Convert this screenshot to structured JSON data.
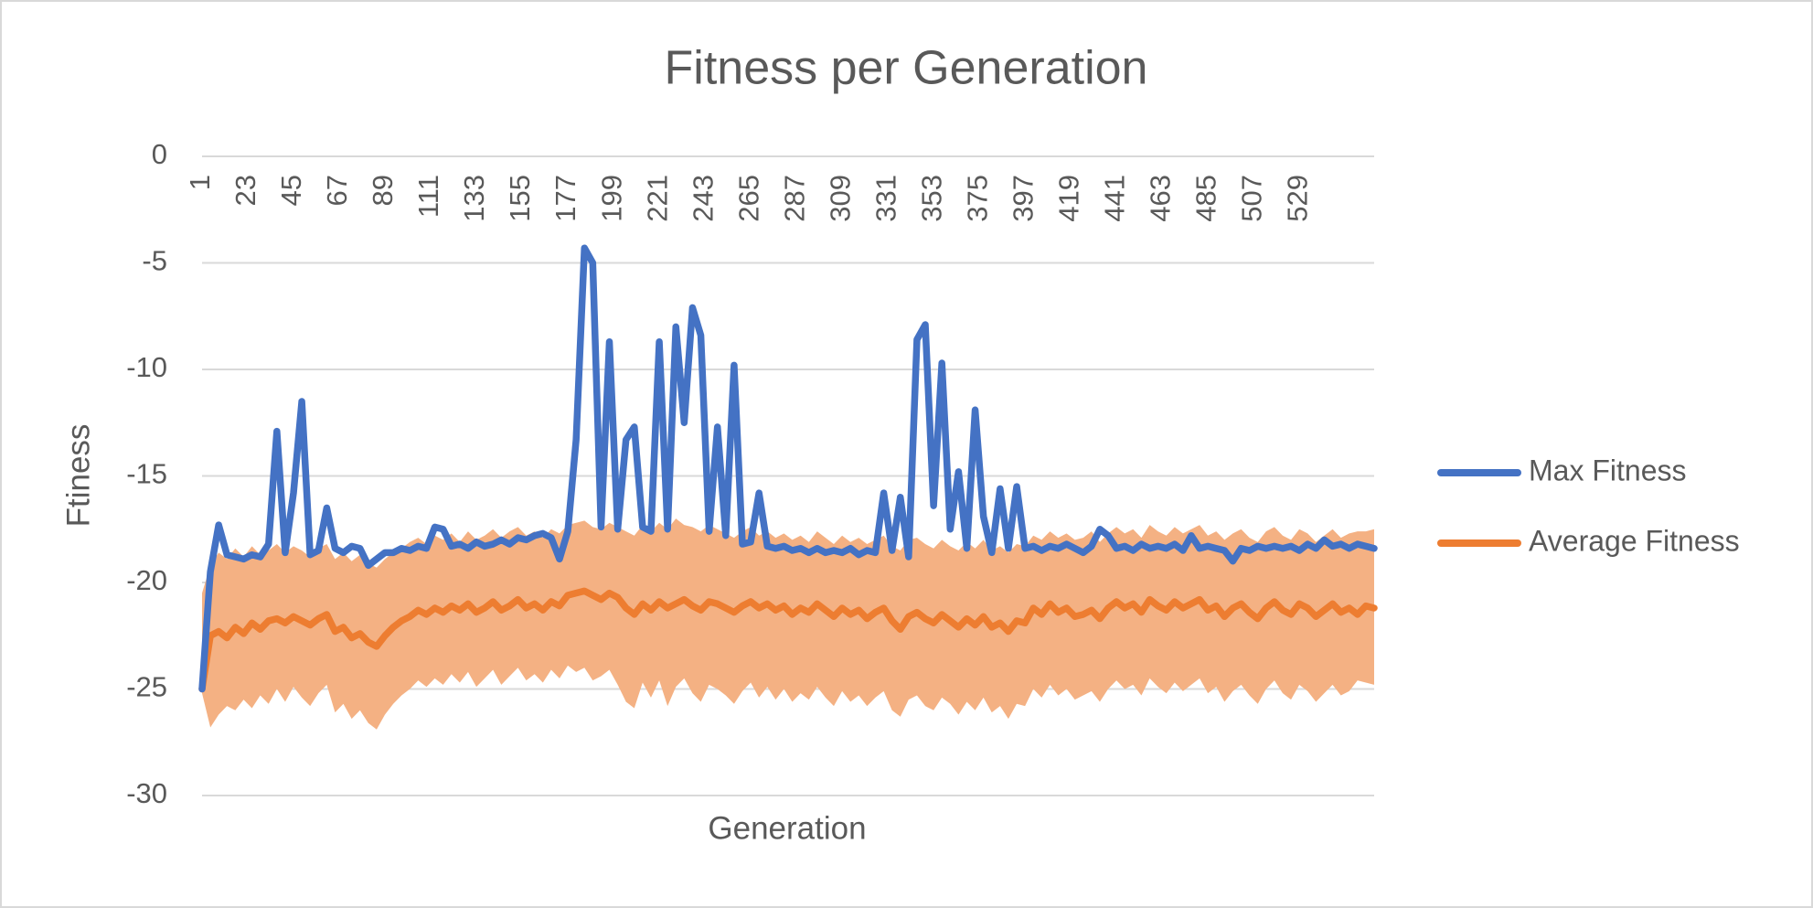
{
  "chart_data": {
    "type": "line",
    "title": "Fitness per Generation",
    "x_label": "Generation",
    "y_label": "Ftiness",
    "x": [
      1,
      5,
      9,
      13,
      17,
      21,
      25,
      29,
      33,
      37,
      41,
      45,
      49,
      53,
      57,
      61,
      65,
      69,
      73,
      77,
      81,
      85,
      89,
      93,
      97,
      101,
      105,
      109,
      113,
      117,
      121,
      125,
      129,
      133,
      137,
      141,
      145,
      149,
      153,
      157,
      161,
      165,
      169,
      173,
      177,
      181,
      185,
      189,
      193,
      197,
      201,
      205,
      209,
      213,
      217,
      221,
      225,
      229,
      233,
      237,
      241,
      245,
      249,
      253,
      257,
      261,
      265,
      269,
      273,
      277,
      281,
      285,
      289,
      293,
      297,
      301,
      305,
      309,
      313,
      317,
      321,
      325,
      329,
      333,
      337,
      341,
      345,
      349,
      353,
      357,
      361,
      365,
      369,
      373,
      377,
      381,
      385,
      389,
      393,
      397,
      401,
      405,
      409,
      413,
      417,
      421,
      425,
      429,
      433,
      437,
      441,
      445,
      449,
      453,
      457,
      461,
      465,
      469,
      473,
      477,
      481,
      485,
      489,
      493,
      497,
      501,
      505,
      509,
      513,
      517,
      521,
      525,
      529,
      533,
      537,
      541,
      545,
      549,
      553,
      557,
      561,
      565
    ],
    "series": [
      {
        "name": "Max Fitness",
        "color": "#4472c4",
        "values": [
          -25,
          -19.5,
          -17.3,
          -18.7,
          -18.8,
          -18.9,
          -18.7,
          -18.8,
          -18.2,
          -12.9,
          -18.6,
          -15.8,
          -11.5,
          -18.7,
          -18.5,
          -16.5,
          -18.4,
          -18.6,
          -18.3,
          -18.4,
          -19.2,
          -18.9,
          -18.6,
          -18.6,
          -18.4,
          -18.5,
          -18.3,
          -18.4,
          -17.4,
          -17.5,
          -18.3,
          -18.2,
          -18.4,
          -18.1,
          -18.3,
          -18.2,
          -18.0,
          -18.2,
          -17.9,
          -18.0,
          -17.8,
          -17.7,
          -17.9,
          -18.9,
          -17.6,
          -13.3,
          -4.3,
          -5.0,
          -17.4,
          -8.7,
          -17.5,
          -13.3,
          -12.7,
          -17.4,
          -17.6,
          -8.7,
          -17.5,
          -8.0,
          -12.5,
          -7.1,
          -8.4,
          -17.6,
          -12.7,
          -17.8,
          -9.8,
          -18.2,
          -18.1,
          -15.8,
          -18.3,
          -18.4,
          -18.3,
          -18.5,
          -18.4,
          -18.6,
          -18.4,
          -18.6,
          -18.5,
          -18.6,
          -18.4,
          -18.7,
          -18.5,
          -18.6,
          -15.8,
          -18.5,
          -16.0,
          -18.8,
          -8.6,
          -7.9,
          -16.4,
          -9.7,
          -17.5,
          -14.8,
          -18.4,
          -11.9,
          -16.9,
          -18.6,
          -15.6,
          -18.4,
          -15.5,
          -18.4,
          -18.3,
          -18.5,
          -18.3,
          -18.4,
          -18.2,
          -18.4,
          -18.6,
          -18.3,
          -17.5,
          -17.8,
          -18.4,
          -18.3,
          -18.5,
          -18.2,
          -18.4,
          -18.3,
          -18.4,
          -18.2,
          -18.5,
          -17.8,
          -18.4,
          -18.3,
          -18.4,
          -18.5,
          -19.0,
          -18.4,
          -18.5,
          -18.3,
          -18.4,
          -18.3,
          -18.4,
          -18.3,
          -18.5,
          -18.2,
          -18.4,
          -18.0,
          -18.3,
          -18.2,
          -18.4,
          -18.2,
          -18.3,
          -18.4
        ]
      },
      {
        "name": "Average Fitness",
        "color": "#ed7d31",
        "values": [
          -25,
          -22.5,
          -22.3,
          -22.6,
          -22.1,
          -22.4,
          -21.9,
          -22.2,
          -21.8,
          -21.7,
          -21.9,
          -21.6,
          -21.8,
          -22.0,
          -21.7,
          -21.5,
          -22.3,
          -22.1,
          -22.6,
          -22.4,
          -22.8,
          -23.0,
          -22.5,
          -22.1,
          -21.8,
          -21.6,
          -21.3,
          -21.5,
          -21.2,
          -21.4,
          -21.1,
          -21.3,
          -21.0,
          -21.4,
          -21.2,
          -20.9,
          -21.3,
          -21.1,
          -20.8,
          -21.2,
          -21.0,
          -21.3,
          -20.9,
          -21.1,
          -20.6,
          -20.5,
          -20.4,
          -20.6,
          -20.8,
          -20.5,
          -20.7,
          -21.2,
          -21.5,
          -21.0,
          -21.3,
          -20.9,
          -21.2,
          -21.0,
          -20.8,
          -21.1,
          -21.3,
          -20.9,
          -21.0,
          -21.2,
          -21.4,
          -21.1,
          -20.9,
          -21.2,
          -21.0,
          -21.3,
          -21.1,
          -21.5,
          -21.2,
          -21.4,
          -21.0,
          -21.3,
          -21.6,
          -21.2,
          -21.5,
          -21.3,
          -21.7,
          -21.4,
          -21.2,
          -21.8,
          -22.2,
          -21.6,
          -21.4,
          -21.7,
          -21.9,
          -21.5,
          -21.8,
          -22.1,
          -21.7,
          -22.0,
          -21.6,
          -22.1,
          -21.9,
          -22.3,
          -21.8,
          -21.9,
          -21.2,
          -21.5,
          -21.0,
          -21.4,
          -21.2,
          -21.6,
          -21.5,
          -21.3,
          -21.7,
          -21.2,
          -20.9,
          -21.2,
          -21.0,
          -21.4,
          -20.8,
          -21.1,
          -21.3,
          -20.9,
          -21.2,
          -21.0,
          -20.8,
          -21.3,
          -21.1,
          -21.6,
          -21.2,
          -21.0,
          -21.4,
          -21.7,
          -21.2,
          -20.9,
          -21.3,
          -21.5,
          -21.0,
          -21.2,
          -21.6,
          -21.3,
          -21.0,
          -21.4,
          -21.2,
          -21.5,
          -21.1,
          -21.2
        ]
      }
    ],
    "band": {
      "color": "#f4b183",
      "upper": [
        -20.5,
        -19.2,
        -18.6,
        -18.9,
        -18.4,
        -18.8,
        -18.3,
        -18.7,
        -18.5,
        -18.2,
        -18.6,
        -18.3,
        -18.5,
        -18.8,
        -18.4,
        -18.2,
        -18.9,
        -18.6,
        -19.0,
        -18.7,
        -19.1,
        -19.3,
        -18.9,
        -18.6,
        -18.4,
        -18.1,
        -17.9,
        -18.2,
        -17.8,
        -18.0,
        -17.7,
        -18.1,
        -17.6,
        -18.0,
        -17.8,
        -17.5,
        -17.9,
        -17.6,
        -17.4,
        -17.8,
        -17.6,
        -17.9,
        -17.5,
        -17.7,
        -17.3,
        -17.2,
        -17.1,
        -17.4,
        -17.5,
        -17.2,
        -17.4,
        -17.6,
        -17.8,
        -17.3,
        -17.6,
        -17.2,
        -17.5,
        -17.0,
        -17.3,
        -17.4,
        -17.6,
        -17.3,
        -17.5,
        -17.7,
        -17.9,
        -17.6,
        -17.4,
        -17.8,
        -17.6,
        -17.9,
        -17.7,
        -18.0,
        -17.8,
        -18.1,
        -17.6,
        -17.9,
        -18.2,
        -17.8,
        -18.1,
        -17.9,
        -18.2,
        -18.0,
        -17.8,
        -18.3,
        -18.5,
        -18.0,
        -17.9,
        -18.2,
        -18.4,
        -18.0,
        -18.3,
        -18.5,
        -18.1,
        -18.4,
        -18.0,
        -18.5,
        -18.3,
        -18.6,
        -18.2,
        -18.3,
        -17.8,
        -18.0,
        -17.6,
        -17.9,
        -17.7,
        -18.0,
        -17.9,
        -17.6,
        -18.1,
        -17.7,
        -17.4,
        -17.7,
        -17.5,
        -17.9,
        -17.3,
        -17.6,
        -17.8,
        -17.4,
        -17.7,
        -17.5,
        -17.3,
        -17.8,
        -17.6,
        -18.0,
        -17.7,
        -17.5,
        -17.9,
        -18.1,
        -17.6,
        -17.4,
        -17.8,
        -18.0,
        -17.5,
        -17.7,
        -18.1,
        -17.8,
        -17.5,
        -17.9,
        -17.7,
        -17.6,
        -17.6,
        -17.5
      ],
      "lower": [
        -25.2,
        -26.8,
        -26.2,
        -25.8,
        -26.0,
        -25.5,
        -25.9,
        -25.3,
        -25.7,
        -25.0,
        -25.6,
        -24.9,
        -25.4,
        -25.8,
        -25.2,
        -24.8,
        -26.1,
        -25.7,
        -26.4,
        -26.0,
        -26.6,
        -26.9,
        -26.2,
        -25.7,
        -25.3,
        -25.0,
        -24.6,
        -24.9,
        -24.5,
        -24.8,
        -24.3,
        -24.7,
        -24.2,
        -24.9,
        -24.5,
        -24.1,
        -24.8,
        -24.4,
        -24.0,
        -24.6,
        -24.3,
        -24.7,
        -24.1,
        -24.5,
        -23.9,
        -24.2,
        -24.0,
        -24.6,
        -24.4,
        -24.1,
        -24.8,
        -25.6,
        -25.9,
        -24.7,
        -25.4,
        -24.6,
        -25.8,
        -24.9,
        -24.5,
        -25.2,
        -25.6,
        -24.8,
        -25.0,
        -25.3,
        -25.7,
        -25.1,
        -24.7,
        -25.4,
        -24.9,
        -25.5,
        -25.0,
        -25.6,
        -25.2,
        -25.5,
        -24.9,
        -25.4,
        -25.8,
        -25.1,
        -25.6,
        -25.3,
        -25.8,
        -25.4,
        -25.1,
        -26.0,
        -26.3,
        -25.5,
        -25.3,
        -25.8,
        -26.0,
        -25.4,
        -25.7,
        -26.2,
        -25.6,
        -26.0,
        -25.4,
        -26.1,
        -25.8,
        -26.4,
        -25.7,
        -25.8,
        -25.0,
        -25.4,
        -24.8,
        -25.3,
        -25.0,
        -25.5,
        -25.3,
        -25.1,
        -25.6,
        -25.0,
        -24.6,
        -25.0,
        -24.8,
        -25.3,
        -24.5,
        -24.9,
        -25.2,
        -24.7,
        -25.1,
        -24.8,
        -24.5,
        -25.2,
        -24.9,
        -25.6,
        -25.1,
        -24.8,
        -25.3,
        -25.7,
        -25.0,
        -24.6,
        -25.2,
        -25.5,
        -24.8,
        -25.1,
        -25.6,
        -25.2,
        -24.8,
        -25.3,
        -25.1,
        -24.6,
        -24.7,
        -24.8
      ]
    },
    "xlim": [
      1,
      565
    ],
    "xticks": [
      1,
      23,
      45,
      67,
      89,
      111,
      133,
      155,
      177,
      199,
      221,
      243,
      265,
      287,
      309,
      331,
      353,
      375,
      397,
      419,
      441,
      463,
      485,
      507,
      529
    ],
    "ylim": [
      -30,
      0
    ],
    "yticks": [
      -30,
      -25,
      -20,
      -15,
      -10,
      -5,
      0
    ],
    "grid": true,
    "legend": "right"
  }
}
